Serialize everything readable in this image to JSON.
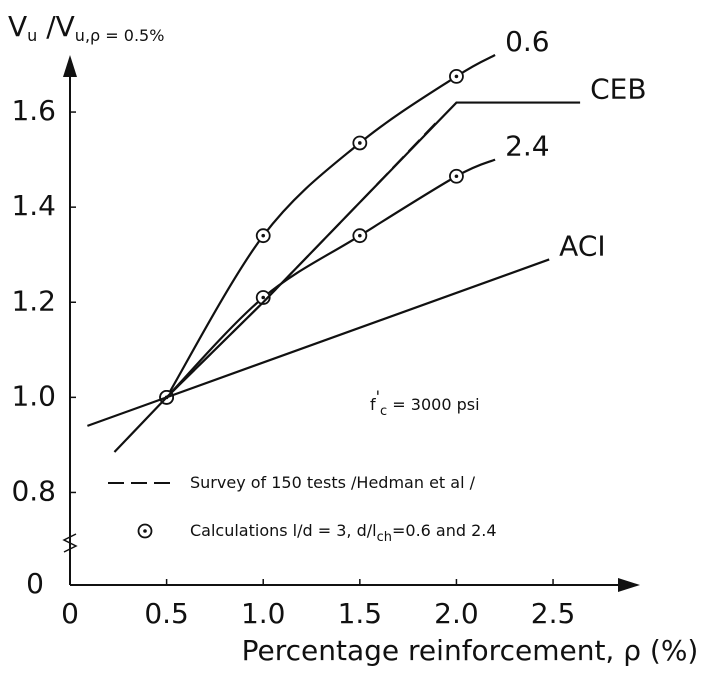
{
  "chart_data": {
    "type": "line",
    "ylabel": {
      "base": "V",
      "sub": "u",
      "mid": " /V",
      "sub2": "u,ρ",
      "tail": " = 0.5%"
    },
    "xlabel": "Percentage reinforcement, ρ (%)",
    "xlim": [
      0,
      2.95
    ],
    "ylim": [
      0.7,
      1.72
    ],
    "xticks": [
      0,
      0.5,
      {
        "value": 1,
        "label": "1.0"
      },
      1.5,
      {
        "value": 2,
        "label": "2.0"
      },
      2.5
    ],
    "yticks": [
      0.8,
      {
        "value": 1,
        "label": "1.0"
      },
      1.2,
      1.4,
      1.6
    ],
    "y_break": {
      "at": 0.7,
      "origin": 0
    },
    "series": [
      {
        "name": "0.6",
        "color": "#111",
        "smooth": true,
        "x": [
          0.5,
          1.0,
          1.5,
          2.0,
          2.2
        ],
        "values": [
          1.0,
          1.34,
          1.535,
          1.675,
          1.72
        ],
        "markers": [
          true,
          true,
          true,
          true,
          false
        ]
      },
      {
        "name": "2.4",
        "color": "#111",
        "smooth": true,
        "x": [
          0.5,
          1.0,
          1.5,
          2.0,
          2.2
        ],
        "values": [
          1.0,
          1.21,
          1.34,
          1.465,
          1.5
        ],
        "markers": [
          true,
          true,
          true,
          true,
          false
        ]
      },
      {
        "name": "CEB",
        "color": "#111",
        "smooth": false,
        "x": [
          0.23,
          0.5,
          1.0,
          1.5,
          2.0,
          2.64
        ],
        "values": [
          0.885,
          1.0,
          1.2,
          1.41,
          1.62,
          1.62
        ]
      },
      {
        "name": "ACI",
        "color": "#111",
        "smooth": false,
        "x": [
          0.09,
          2.48
        ],
        "values": [
          0.94,
          1.29
        ]
      },
      {
        "name": "Survey",
        "color": "#111",
        "smooth": false,
        "dash": true,
        "x": [
          0.5,
          1.0,
          1.5,
          1.9
        ],
        "values": [
          1.0,
          1.2,
          1.41,
          1.58
        ]
      }
    ],
    "annotation": {
      "base": "f",
      "sup": "'",
      "sub": "c",
      "text": " = 3000 psi"
    },
    "legend": [
      {
        "label": "Survey of 150 tests /Hedman et al /",
        "style": "dashed"
      },
      {
        "label": "Calculations l/d = 3, d/l",
        "sub": "ch",
        "tail": "=0.6 and 2.4",
        "style": "marker"
      }
    ]
  }
}
